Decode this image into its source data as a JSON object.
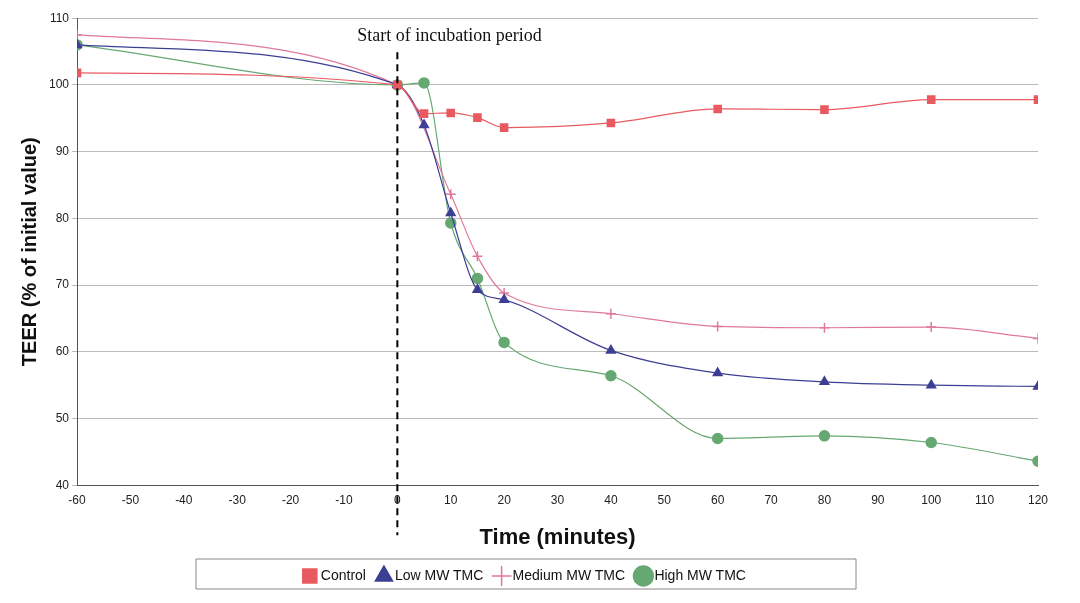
{
  "chart_data": {
    "type": "line",
    "xlabel": "Time (minutes)",
    "ylabel": "TEER (% of initial value)",
    "x": [
      -60,
      0,
      5,
      10,
      15,
      20,
      40,
      60,
      80,
      100,
      120
    ],
    "xlim": [
      -60,
      120
    ],
    "xticks": [
      -60,
      -50,
      -40,
      -30,
      -20,
      -10,
      0,
      10,
      20,
      30,
      40,
      50,
      60,
      70,
      80,
      90,
      100,
      110,
      120
    ],
    "ylim": [
      40,
      110
    ],
    "yticks": [
      40,
      50,
      60,
      70,
      80,
      90,
      100,
      110
    ],
    "grid": "y",
    "legend": "bottom",
    "line_style": "solid",
    "ref_lines": [
      {
        "axis": "x",
        "value": 0,
        "label": "Start of incubation period",
        "line_style": "dashed",
        "color": "#000000"
      }
    ],
    "series": [
      {
        "name": "Control",
        "color": "#e85a60",
        "marker": "square",
        "values": [
          101.8,
          100,
          95.7,
          95.8,
          95.1,
          93.6,
          94.3,
          96.4,
          96.3,
          97.8,
          97.8
        ]
      },
      {
        "name": "Low MW TMC",
        "color": "#3c3f94",
        "marker": "triangle",
        "values": [
          106,
          100,
          94,
          80.8,
          69.3,
          67.8,
          60.2,
          56.8,
          55.5,
          55,
          54.8
        ]
      },
      {
        "name": "Medium MW TMC",
        "color": "#e0789a",
        "marker": "cross",
        "values": [
          107.5,
          100,
          null,
          83.6,
          74.3,
          68.8,
          65.7,
          63.8,
          63.6,
          63.7,
          62
        ]
      },
      {
        "name": "High MW TMC",
        "color": "#66a872",
        "marker": "circle",
        "values": [
          106,
          100,
          100.3,
          79.3,
          71,
          61.4,
          56.4,
          47,
          47.4,
          46.4,
          43.6
        ]
      }
    ]
  }
}
